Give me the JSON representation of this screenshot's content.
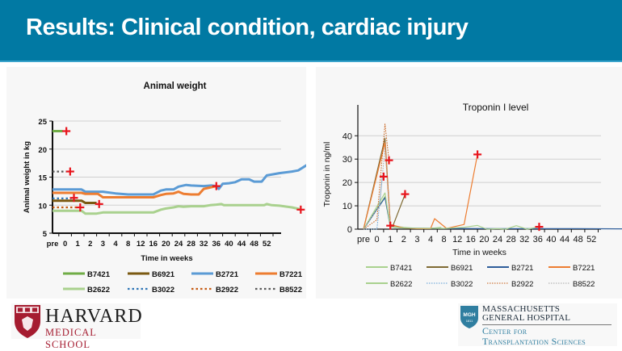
{
  "slide": {
    "title": "Results: Clinical condition, cardiac injury",
    "colors": {
      "header_bg": "#0179a3",
      "panel_bg": "#f7f7f7",
      "marker": "#e8141c"
    }
  },
  "logos": {
    "harvard": {
      "name": "HARVARD",
      "subtitle": "MEDICAL SCHOOL"
    },
    "mgh": {
      "badge": "MGH",
      "badge_year": "1811",
      "line1": "MASSACHUSETTS",
      "line2": "GENERAL HOSPITAL",
      "line3": "Center for",
      "line4": "Transplantation Sciences"
    }
  },
  "chart_data": [
    {
      "type": "line",
      "title": "Animal weight",
      "xlabel": "Time in weeks",
      "ylabel": "Animal weight in kg",
      "ylim": [
        5,
        25
      ],
      "yticks": [
        5,
        10,
        15,
        20,
        25
      ],
      "grid": true,
      "legend": "bottom",
      "categories": [
        "pre",
        "0",
        "1",
        "2",
        "3",
        "4",
        "8",
        "12",
        "16",
        "20",
        "24",
        "28",
        "32",
        "36",
        "40",
        "44",
        "48",
        "52"
      ],
      "series": [
        {
          "name": "B7421",
          "color": "#70ad47",
          "dash": "solid",
          "points": [
            [
              0,
              23.2
            ],
            [
              0.8,
              23.2
            ]
          ],
          "end_marker": [
            1.1,
            23.2
          ]
        },
        {
          "name": "B6921",
          "color": "#7b5a12",
          "dash": "solid",
          "points": [
            [
              0,
              10.8
            ],
            [
              2.3,
              10.8
            ],
            [
              2.6,
              10.4
            ],
            [
              3.5,
              10.4
            ]
          ],
          "end_marker": [
            3.7,
            10.2
          ]
        },
        {
          "name": "B2721",
          "color": "#5b9bd5",
          "dash": "solid",
          "points": [
            [
              0,
              12.8
            ],
            [
              2.3,
              12.8
            ],
            [
              2.6,
              12.4
            ],
            [
              4,
              12.4
            ],
            [
              5,
              12.1
            ],
            [
              6,
              11.9
            ],
            [
              7,
              11.9
            ],
            [
              8,
              11.9
            ],
            [
              8.6,
              12.6
            ],
            [
              9,
              12.8
            ],
            [
              9.6,
              12.8
            ],
            [
              10,
              13.3
            ],
            [
              10.6,
              13.6
            ],
            [
              11,
              13.5
            ],
            [
              12,
              13.4
            ],
            [
              12.6,
              13.5
            ],
            [
              13,
              13.4
            ],
            [
              13.2,
              12.9
            ],
            [
              13.5,
              13.8
            ],
            [
              14,
              13.9
            ],
            [
              14.5,
              14.1
            ],
            [
              15,
              14.6
            ],
            [
              15.6,
              14.6
            ],
            [
              16,
              14.2
            ],
            [
              16.6,
              14.2
            ],
            [
              17,
              15.3
            ],
            [
              18,
              15.7
            ],
            [
              19,
              16.0
            ],
            [
              19.5,
              16.2
            ],
            [
              20.5,
              17.6
            ],
            [
              21,
              17.6
            ],
            [
              21.5,
              17.5
            ],
            [
              22.5,
              17.7
            ],
            [
              23.5,
              17.2
            ],
            [
              24.5,
              17.0
            ],
            [
              25.5,
              17.2
            ],
            [
              26.5,
              17.4
            ],
            [
              27.3,
              17.5
            ]
          ],
          "end_marker": [
            27.3,
            17.5
          ]
        },
        {
          "name": "B7221",
          "color": "#ed7d31",
          "dash": "solid",
          "points": [
            [
              0,
              12.2
            ],
            [
              2.3,
              12.2
            ],
            [
              2.6,
              12.0
            ],
            [
              3.6,
              12.0
            ],
            [
              4,
              11.4
            ],
            [
              5,
              11.4
            ],
            [
              7,
              11.4
            ],
            [
              8,
              11.4
            ],
            [
              8.6,
              11.8
            ],
            [
              9,
              12.0
            ],
            [
              9.6,
              12.1
            ],
            [
              10,
              12.4
            ],
            [
              10.4,
              12.0
            ],
            [
              11,
              11.9
            ],
            [
              11.6,
              11.9
            ],
            [
              12,
              12.9
            ],
            [
              12.6,
              13.2
            ],
            [
              13,
              13.4
            ]
          ],
          "end_marker": [
            13,
            13.4
          ]
        },
        {
          "name": "B2622",
          "color": "#a9d18e",
          "dash": "solid",
          "points": [
            [
              0,
              9.0
            ],
            [
              2.3,
              9.0
            ],
            [
              2.6,
              8.5
            ],
            [
              3.5,
              8.5
            ],
            [
              4,
              8.7
            ],
            [
              5,
              8.7
            ],
            [
              7,
              8.7
            ],
            [
              8,
              8.7
            ],
            [
              8.6,
              9.2
            ],
            [
              9,
              9.4
            ],
            [
              9.6,
              9.6
            ],
            [
              10,
              9.8
            ],
            [
              10.4,
              9.7
            ],
            [
              11,
              9.8
            ],
            [
              11.6,
              9.8
            ],
            [
              12,
              9.8
            ],
            [
              12.5,
              10.0
            ],
            [
              13,
              10.1
            ],
            [
              13.4,
              10.2
            ],
            [
              13.6,
              10.0
            ],
            [
              14,
              10.0
            ],
            [
              16,
              10.0
            ],
            [
              16.8,
              10.0
            ],
            [
              17,
              10.2
            ],
            [
              17.4,
              10.0
            ],
            [
              18,
              9.9
            ],
            [
              19,
              9.6
            ],
            [
              19.6,
              9.3
            ]
          ],
          "end_marker": [
            19.7,
            9.2
          ]
        },
        {
          "name": "B3022",
          "color": "#2e75b6",
          "dash": "dotted",
          "points": [
            [
              0,
              11.2
            ],
            [
              1.5,
              11.2
            ]
          ],
          "end_marker": [
            1.7,
            11.3
          ]
        },
        {
          "name": "B2922",
          "color": "#c55a11",
          "dash": "dotted",
          "points": [
            [
              0,
              9.6
            ],
            [
              2.0,
              9.6
            ]
          ],
          "end_marker": [
            2.2,
            9.6
          ]
        },
        {
          "name": "B8522",
          "color": "#595959",
          "dash": "dotted",
          "points": [
            [
              0,
              16.0
            ],
            [
              1.1,
              16.0
            ]
          ],
          "end_marker": [
            1.4,
            16.0
          ]
        }
      ]
    },
    {
      "type": "line",
      "title": "Troponin I level",
      "xlabel": "Time in weeks",
      "ylabel": "Troponin in ng/ml",
      "ylim": [
        0,
        47
      ],
      "yticks": [
        0,
        10,
        20,
        30,
        40
      ],
      "grid": true,
      "legend": "bottom",
      "categories": [
        "pre",
        "0",
        "1",
        "2",
        "3",
        "4",
        "8",
        "12",
        "16",
        "20",
        "24",
        "28",
        "32",
        "36",
        "40",
        "44",
        "48",
        "52"
      ],
      "series": [
        {
          "name": "B7421",
          "color": "#a9d18e",
          "dash": "solid",
          "points": [
            [
              0,
              0
            ],
            [
              1.6,
              14
            ],
            [
              2.0,
              1.5
            ],
            [
              3,
              0.8
            ],
            [
              4,
              0.3
            ],
            [
              5,
              0.3
            ],
            [
              5.8,
              0.8
            ]
          ],
          "end_marker": null
        },
        {
          "name": "B6921",
          "color": "#7f6a33",
          "dash": "solid",
          "points": [
            [
              0,
              0
            ],
            [
              1.6,
              39
            ],
            [
              2.0,
              2.0
            ],
            [
              2.2,
              1.5
            ],
            [
              3.1,
              15
            ]
          ],
          "end_marker": [
            3.1,
            15
          ]
        },
        {
          "name": "B2721",
          "color": "#2e5d9a",
          "dash": "solid",
          "points": [
            [
              0,
              0
            ],
            [
              1.6,
              13.5
            ],
            [
              2.0,
              1.0
            ],
            [
              3,
              0.5
            ],
            [
              6,
              0.3
            ],
            [
              10,
              0.2
            ],
            [
              16,
              0.2
            ],
            [
              20,
              0.1
            ],
            [
              24,
              0.3
            ],
            [
              26,
              0.4
            ],
            [
              27.3,
              0.2
            ]
          ],
          "end_marker": [
            27.3,
            0.2
          ]
        },
        {
          "name": "B7221",
          "color": "#ed7d31",
          "dash": "solid",
          "points": [
            [
              0,
              0
            ],
            [
              1.6,
              37
            ],
            [
              2.0,
              2.0
            ],
            [
              3,
              0.5
            ],
            [
              4,
              0.2
            ],
            [
              5,
              0.2
            ],
            [
              5.3,
              4.5
            ],
            [
              6.2,
              0.3
            ],
            [
              7.5,
              2.0
            ],
            [
              8.5,
              32
            ]
          ],
          "end_marker": [
            8.5,
            32
          ]
        },
        {
          "name": "B2622",
          "color": "#a9d18e",
          "dash": "solid",
          "points": [
            [
              0,
              0
            ],
            [
              1.6,
              15.5
            ],
            [
              2.0,
              1.0
            ],
            [
              3,
              0.5
            ],
            [
              6,
              0.3
            ],
            [
              7.5,
              0.8
            ],
            [
              8.5,
              1.6
            ],
            [
              9.2,
              0
            ],
            [
              10,
              0.2
            ],
            [
              10.6,
              0
            ],
            [
              11.4,
              1.5
            ],
            [
              12.2,
              0
            ],
            [
              13.1,
              1.0
            ]
          ],
          "end_marker": [
            13.1,
            1.0
          ]
        },
        {
          "name": "B3022",
          "color": "#5b9bd5",
          "dash": "dotted",
          "points": [
            [
              0,
              0
            ],
            [
              1.0,
              0
            ],
            [
              1.4,
              22
            ],
            [
              1.6,
              22.5
            ]
          ],
          "end_marker": [
            1.5,
            22.5
          ]
        },
        {
          "name": "B2922",
          "color": "#c55a11",
          "dash": "dotted",
          "points": [
            [
              0,
              0
            ],
            [
              1.0,
              4
            ],
            [
              1.6,
              45
            ],
            [
              1.9,
              29.5
            ]
          ],
          "end_marker": [
            1.9,
            29.5
          ]
        },
        {
          "name": "B8522",
          "color": "#a6a6a6",
          "dash": "dotted",
          "points": [
            [
              0,
              0
            ],
            [
              1.2,
              10
            ],
            [
              1.6,
              35
            ],
            [
              2.0,
              1.5
            ]
          ],
          "end_marker": [
            2.0,
            1.5
          ]
        }
      ]
    }
  ]
}
